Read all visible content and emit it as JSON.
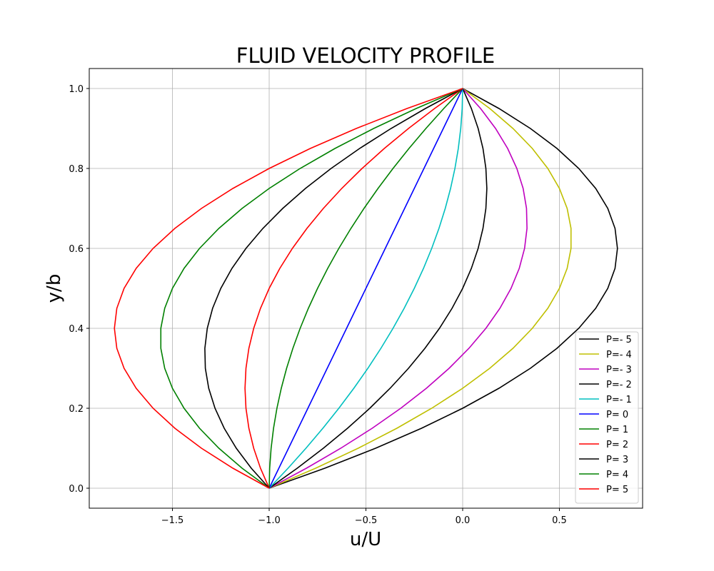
{
  "chart_data": {
    "type": "line",
    "title": "FLUID VELOCITY PROFILE",
    "x_label": "u/U",
    "y_label": "y/b",
    "xlim": [
      -1.93,
      0.93
    ],
    "ylim": [
      -0.05,
      1.05
    ],
    "xticks": [
      {
        "value": -1.5,
        "label": "−1.5"
      },
      {
        "value": -1.0,
        "label": "−1.0"
      },
      {
        "value": -0.5,
        "label": "−0.5"
      },
      {
        "value": 0.0,
        "label": "0.0"
      },
      {
        "value": 0.5,
        "label": "0.5"
      }
    ],
    "yticks": [
      {
        "value": 0.0,
        "label": "0.0"
      },
      {
        "value": 0.2,
        "label": "0.2"
      },
      {
        "value": 0.4,
        "label": "0.4"
      },
      {
        "value": 0.6,
        "label": "0.6"
      },
      {
        "value": 0.8,
        "label": "0.8"
      },
      {
        "value": 1.0,
        "label": "1.0"
      }
    ],
    "grid": true,
    "legend": "lower right",
    "y": [
      0,
      0.05,
      0.1,
      0.15,
      0.2,
      0.25,
      0.3,
      0.35,
      0.4,
      0.45,
      0.5,
      0.55,
      0.6,
      0.65,
      0.7,
      0.75,
      0.8,
      0.85,
      0.9,
      0.95,
      1
    ],
    "series": [
      {
        "name": "P=- 5",
        "color": "#000000",
        "x": [
          -1,
          -0.7125,
          -0.45,
          -0.2125,
          0,
          0.1875,
          0.35,
          0.4875,
          0.6,
          0.6875,
          0.75,
          0.7875,
          0.8,
          0.7875,
          0.75,
          0.6875,
          0.6,
          0.4875,
          0.35,
          0.1875,
          0
        ]
      },
      {
        "name": "P=- 4",
        "color": "#bfbf00",
        "x": [
          -1,
          -0.76,
          -0.54,
          -0.34,
          -0.16,
          0,
          0.14,
          0.26,
          0.36,
          0.44,
          0.5,
          0.54,
          0.56,
          0.56,
          0.54,
          0.5,
          0.44,
          0.36,
          0.26,
          0.14,
          0
        ]
      },
      {
        "name": "P=- 3",
        "color": "#bf00bf",
        "x": [
          -1,
          -0.8075,
          -0.63,
          -0.4675,
          -0.32,
          -0.1875,
          -0.07,
          0.0325,
          0.12,
          0.1925,
          0.25,
          0.2925,
          0.32,
          0.3325,
          0.33,
          0.3125,
          0.28,
          0.2325,
          0.17,
          0.0925,
          0
        ]
      },
      {
        "name": "P=- 2",
        "color": "#000000",
        "x": [
          -1,
          -0.855,
          -0.72,
          -0.595,
          -0.48,
          -0.375,
          -0.28,
          -0.195,
          -0.12,
          -0.055,
          0,
          0.045,
          0.08,
          0.105,
          0.12,
          0.125,
          0.12,
          0.105,
          0.08,
          0.045,
          0
        ]
      },
      {
        "name": "P=- 1",
        "color": "#00bfbf",
        "x": [
          -1,
          -0.9025,
          -0.81,
          -0.7225,
          -0.64,
          -0.5625,
          -0.49,
          -0.4225,
          -0.36,
          -0.3025,
          -0.25,
          -0.2025,
          -0.16,
          -0.1225,
          -0.09,
          -0.0625,
          -0.04,
          -0.0225,
          -0.01,
          -0.0025,
          0
        ]
      },
      {
        "name": "P= 0",
        "color": "#0000ff",
        "x": [
          -1,
          -0.95,
          -0.9,
          -0.85,
          -0.8,
          -0.75,
          -0.7,
          -0.65,
          -0.6,
          -0.55,
          -0.5,
          -0.45,
          -0.4,
          -0.35,
          -0.3,
          -0.25,
          -0.2,
          -0.15,
          -0.1,
          -0.05,
          0
        ]
      },
      {
        "name": "P= 1",
        "color": "#008000",
        "x": [
          -1,
          -0.9975,
          -0.99,
          -0.9775,
          -0.96,
          -0.9375,
          -0.91,
          -0.8775,
          -0.84,
          -0.7975,
          -0.75,
          -0.6975,
          -0.64,
          -0.5775,
          -0.51,
          -0.4375,
          -0.36,
          -0.2775,
          -0.19,
          -0.0975,
          0
        ]
      },
      {
        "name": "P= 2",
        "color": "#ff0000",
        "x": [
          -1,
          -1.045,
          -1.08,
          -1.105,
          -1.12,
          -1.125,
          -1.12,
          -1.105,
          -1.08,
          -1.045,
          -1,
          -0.945,
          -0.88,
          -0.805,
          -0.72,
          -0.625,
          -0.52,
          -0.405,
          -0.28,
          -0.145,
          0
        ]
      },
      {
        "name": "P= 3",
        "color": "#000000",
        "x": [
          -1,
          -1.0925,
          -1.17,
          -1.2325,
          -1.28,
          -1.3125,
          -1.33,
          -1.3325,
          -1.32,
          -1.2925,
          -1.25,
          -1.1925,
          -1.12,
          -1.0325,
          -0.93,
          -0.8125,
          -0.68,
          -0.5325,
          -0.37,
          -0.1925,
          0
        ]
      },
      {
        "name": "P= 4",
        "color": "#008000",
        "x": [
          -1,
          -1.14,
          -1.26,
          -1.36,
          -1.44,
          -1.5,
          -1.54,
          -1.56,
          -1.56,
          -1.54,
          -1.5,
          -1.44,
          -1.36,
          -1.26,
          -1.14,
          -1,
          -0.84,
          -0.66,
          -0.46,
          -0.24,
          0
        ]
      },
      {
        "name": "P= 5",
        "color": "#ff0000",
        "x": [
          -1,
          -1.1875,
          -1.35,
          -1.4875,
          -1.6,
          -1.6875,
          -1.75,
          -1.7875,
          -1.8,
          -1.7875,
          -1.75,
          -1.6875,
          -1.6,
          -1.4875,
          -1.35,
          -1.1875,
          -1,
          -0.7875,
          -0.55,
          -0.2875,
          0
        ]
      }
    ]
  }
}
